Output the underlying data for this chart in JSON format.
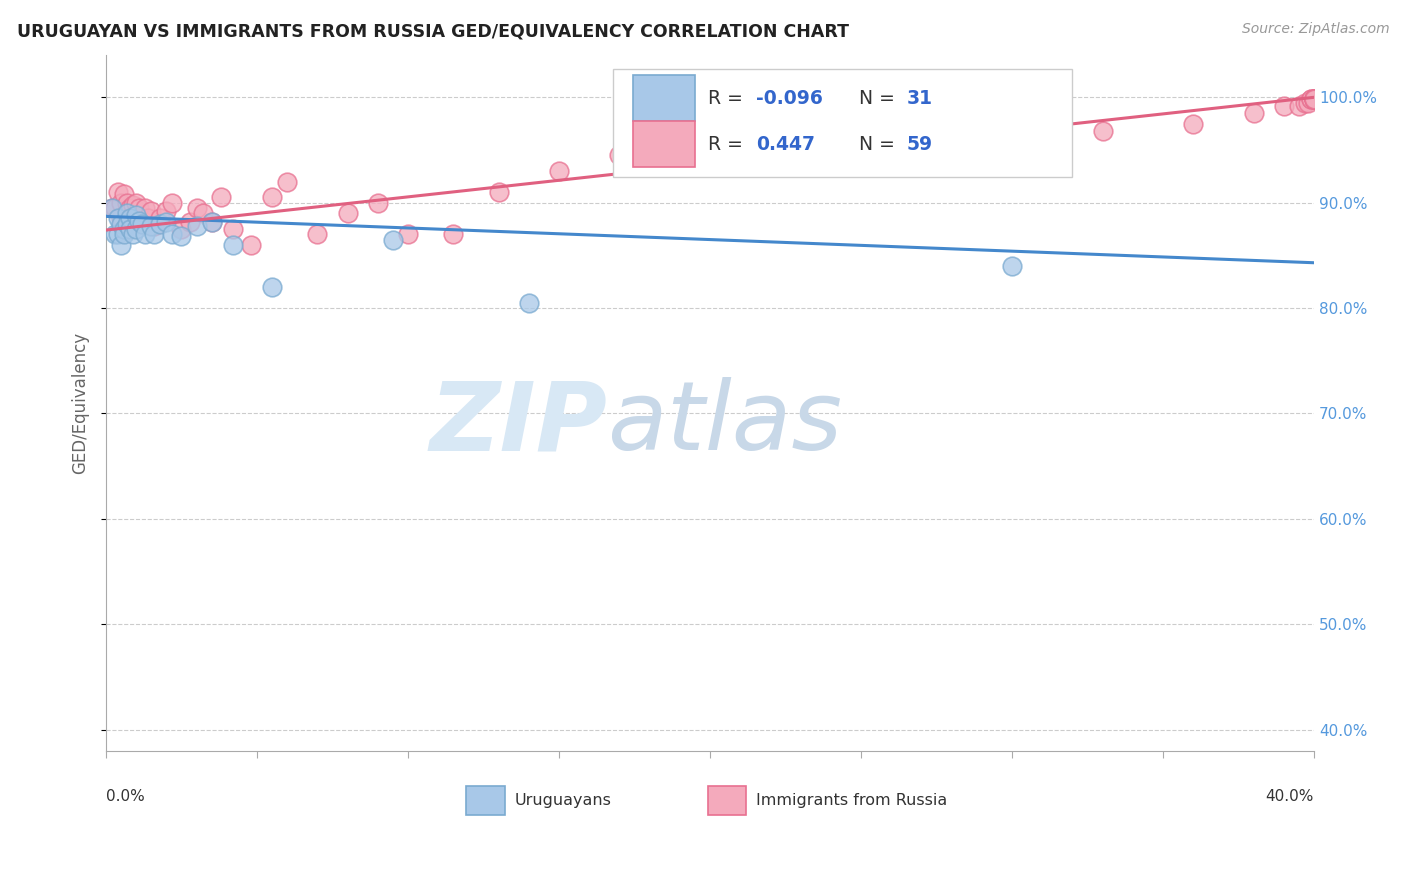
{
  "title": "URUGUAYAN VS IMMIGRANTS FROM RUSSIA GED/EQUIVALENCY CORRELATION CHART",
  "source": "Source: ZipAtlas.com",
  "ylabel": "GED/Equivalency",
  "ytick_labels": [
    "40.0%",
    "50.0%",
    "60.0%",
    "70.0%",
    "80.0%",
    "90.0%",
    "100.0%"
  ],
  "ytick_values": [
    0.4,
    0.5,
    0.6,
    0.7,
    0.8,
    0.9,
    1.0
  ],
  "xtick_values": [
    0.0,
    0.05,
    0.1,
    0.15,
    0.2,
    0.25,
    0.3,
    0.35,
    0.4
  ],
  "xtick_labels": [
    "0.0%",
    "",
    "",
    "",
    "",
    "",
    "",
    "",
    "40.0%"
  ],
  "xmin": 0.0,
  "xmax": 0.4,
  "ymin": 0.38,
  "ymax": 1.04,
  "blue_R": -0.096,
  "blue_N": 31,
  "pink_R": 0.447,
  "pink_N": 59,
  "blue_color": "#A8C8E8",
  "pink_color": "#F4AABC",
  "blue_edge_color": "#7AAAD0",
  "pink_edge_color": "#E87090",
  "blue_line_color": "#4488CC",
  "pink_line_color": "#E06080",
  "legend_label_blue": "Uruguayans",
  "legend_label_pink": "Immigrants from Russia",
  "blue_scatter_x": [
    0.002,
    0.003,
    0.004,
    0.004,
    0.005,
    0.005,
    0.006,
    0.006,
    0.007,
    0.007,
    0.008,
    0.008,
    0.009,
    0.01,
    0.01,
    0.011,
    0.012,
    0.013,
    0.015,
    0.016,
    0.018,
    0.02,
    0.022,
    0.025,
    0.03,
    0.035,
    0.042,
    0.055,
    0.095,
    0.14,
    0.3
  ],
  "blue_scatter_y": [
    0.895,
    0.87,
    0.885,
    0.87,
    0.88,
    0.86,
    0.875,
    0.87,
    0.89,
    0.88,
    0.885,
    0.875,
    0.87,
    0.888,
    0.875,
    0.883,
    0.88,
    0.87,
    0.878,
    0.87,
    0.88,
    0.882,
    0.87,
    0.868,
    0.878,
    0.882,
    0.86,
    0.82,
    0.865,
    0.805,
    0.84
  ],
  "pink_scatter_x": [
    0.002,
    0.003,
    0.004,
    0.005,
    0.005,
    0.006,
    0.007,
    0.007,
    0.008,
    0.008,
    0.009,
    0.01,
    0.01,
    0.011,
    0.012,
    0.013,
    0.014,
    0.015,
    0.016,
    0.018,
    0.02,
    0.022,
    0.025,
    0.028,
    0.03,
    0.032,
    0.035,
    0.038,
    0.042,
    0.048,
    0.055,
    0.06,
    0.07,
    0.08,
    0.09,
    0.1,
    0.115,
    0.13,
    0.15,
    0.17,
    0.19,
    0.21,
    0.24,
    0.27,
    0.3,
    0.33,
    0.36,
    0.38,
    0.39,
    0.395,
    0.397,
    0.398,
    0.399,
    0.399,
    0.4,
    0.4,
    0.4,
    0.4,
    0.4
  ],
  "pink_scatter_y": [
    0.895,
    0.895,
    0.91,
    0.9,
    0.885,
    0.908,
    0.892,
    0.9,
    0.88,
    0.895,
    0.898,
    0.885,
    0.9,
    0.895,
    0.88,
    0.895,
    0.885,
    0.892,
    0.878,
    0.885,
    0.892,
    0.9,
    0.875,
    0.882,
    0.895,
    0.89,
    0.882,
    0.905,
    0.875,
    0.86,
    0.905,
    0.92,
    0.87,
    0.89,
    0.9,
    0.87,
    0.87,
    0.91,
    0.93,
    0.945,
    0.945,
    0.96,
    0.965,
    0.965,
    0.965,
    0.968,
    0.975,
    0.985,
    0.992,
    0.992,
    0.995,
    0.995,
    0.998,
    0.998,
    0.998,
    0.998,
    0.998,
    0.998,
    0.998
  ],
  "blue_line_x0": 0.0,
  "blue_line_x1": 0.4,
  "blue_line_y0": 0.887,
  "blue_line_y1": 0.843,
  "pink_line_x0": 0.0,
  "pink_line_x1": 0.4,
  "pink_line_y0": 0.874,
  "pink_line_y1": 1.0,
  "watermark_zip_color": "#D8E8F5",
  "watermark_atlas_color": "#C8D8E8"
}
